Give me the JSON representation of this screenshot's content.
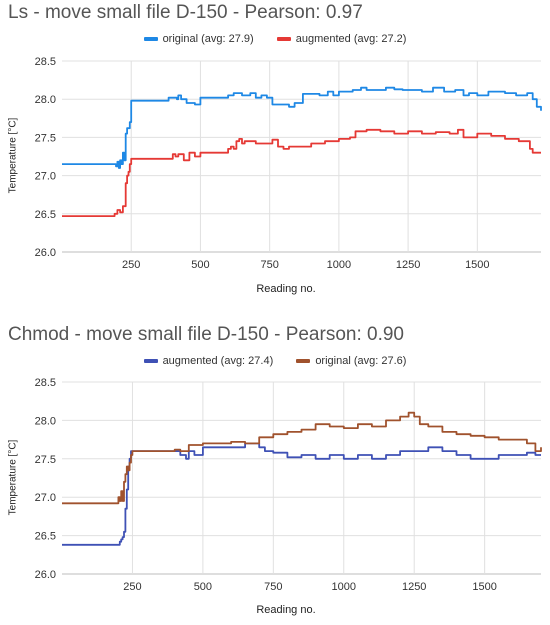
{
  "chart_data": [
    {
      "type": "line",
      "title": "Ls - move small file D-150 - Pearson: 0.97",
      "xlabel": "Reading no.",
      "ylabel": "Temperature [°C]",
      "xlim": [
        0,
        1730
      ],
      "ylim": [
        26.0,
        28.5
      ],
      "xticks": [
        "250",
        "500",
        "750",
        "1000",
        "1250",
        "1500"
      ],
      "yticks": [
        "26.0",
        "26.5",
        "27.0",
        "27.5",
        "28.0",
        "28.5"
      ],
      "grid": true,
      "legend_position": "top-center",
      "series": [
        {
          "name": "original (avg: 27.9)",
          "color": "#1e88e5",
          "x": [
            0,
            190,
            195,
            200,
            205,
            210,
            215,
            220,
            225,
            230,
            235,
            240,
            245,
            250,
            300,
            380,
            385,
            400,
            415,
            420,
            430,
            450,
            480,
            500,
            560,
            600,
            620,
            650,
            680,
            700,
            720,
            740,
            760,
            800,
            820,
            840,
            870,
            900,
            930,
            960,
            980,
            1000,
            1020,
            1050,
            1080,
            1100,
            1130,
            1170,
            1200,
            1230,
            1260,
            1300,
            1340,
            1380,
            1420,
            1450,
            1470,
            1500,
            1540,
            1600,
            1640,
            1680,
            1700,
            1715,
            1730
          ],
          "y": [
            27.15,
            27.15,
            27.12,
            27.18,
            27.1,
            27.2,
            27.15,
            27.3,
            27.2,
            27.55,
            27.62,
            27.62,
            27.7,
            27.98,
            27.98,
            27.98,
            28.02,
            28.02,
            28.0,
            28.05,
            28.0,
            27.95,
            27.93,
            28.02,
            28.02,
            28.05,
            28.08,
            28.05,
            28.08,
            28.02,
            28.05,
            28.02,
            27.93,
            27.93,
            27.9,
            27.95,
            28.07,
            28.07,
            28.05,
            28.1,
            28.05,
            28.1,
            28.1,
            28.12,
            28.15,
            28.12,
            28.12,
            28.15,
            28.13,
            28.12,
            28.12,
            28.1,
            28.15,
            28.1,
            28.12,
            28.05,
            28.08,
            28.05,
            28.1,
            28.08,
            28.05,
            28.08,
            28.0,
            27.9,
            27.85
          ]
        },
        {
          "name": "augmented (avg: 27.2)",
          "color": "#e53935",
          "x": [
            0,
            180,
            190,
            200,
            210,
            220,
            230,
            235,
            240,
            245,
            250,
            300,
            390,
            400,
            410,
            420,
            440,
            460,
            480,
            500,
            560,
            600,
            610,
            620,
            630,
            640,
            650,
            660,
            700,
            740,
            760,
            780,
            800,
            820,
            850,
            900,
            950,
            1000,
            1040,
            1060,
            1100,
            1150,
            1200,
            1250,
            1300,
            1350,
            1400,
            1430,
            1450,
            1500,
            1550,
            1600,
            1650,
            1690,
            1700,
            1730
          ],
          "y": [
            26.47,
            26.47,
            26.5,
            26.55,
            26.52,
            26.6,
            26.9,
            27.0,
            27.05,
            27.15,
            27.22,
            27.22,
            27.22,
            27.28,
            27.25,
            27.28,
            27.2,
            27.3,
            27.25,
            27.3,
            27.3,
            27.35,
            27.38,
            27.35,
            27.45,
            27.48,
            27.42,
            27.45,
            27.42,
            27.42,
            27.47,
            27.38,
            27.35,
            27.38,
            27.38,
            27.42,
            27.45,
            27.48,
            27.5,
            27.58,
            27.6,
            27.58,
            27.55,
            27.58,
            27.55,
            27.57,
            27.55,
            27.6,
            27.5,
            27.55,
            27.52,
            27.48,
            27.45,
            27.35,
            27.3,
            27.3
          ]
        }
      ]
    },
    {
      "type": "line",
      "title": "Chmod - move small file D-150 - Pearson: 0.90",
      "xlabel": "Reading no.",
      "ylabel": "Temperature [°C]",
      "xlim": [
        0,
        1700
      ],
      "ylim": [
        26.0,
        28.5
      ],
      "xticks": [
        "250",
        "500",
        "750",
        "1000",
        "1250",
        "1500"
      ],
      "yticks": [
        "26.0",
        "26.5",
        "27.0",
        "27.5",
        "28.0",
        "28.5"
      ],
      "grid": true,
      "legend_position": "top-center",
      "series": [
        {
          "name": "augmented (avg: 27.4)",
          "color": "#3f51b5",
          "x": [
            0,
            200,
            205,
            210,
            215,
            220,
            225,
            230,
            235,
            240,
            245,
            250,
            300,
            400,
            420,
            440,
            450,
            470,
            500,
            550,
            600,
            650,
            700,
            720,
            750,
            800,
            850,
            900,
            950,
            1000,
            1050,
            1100,
            1150,
            1200,
            1250,
            1300,
            1350,
            1400,
            1450,
            1500,
            1550,
            1600,
            1650,
            1680,
            1700
          ],
          "y": [
            26.38,
            26.38,
            26.42,
            26.45,
            26.48,
            26.55,
            26.85,
            27.1,
            27.4,
            27.5,
            27.6,
            27.6,
            27.6,
            27.6,
            27.55,
            27.5,
            27.6,
            27.55,
            27.65,
            27.65,
            27.65,
            27.7,
            27.65,
            27.6,
            27.58,
            27.52,
            27.55,
            27.5,
            27.55,
            27.5,
            27.55,
            27.5,
            27.55,
            27.6,
            27.6,
            27.65,
            27.6,
            27.55,
            27.5,
            27.5,
            27.55,
            27.55,
            27.58,
            27.55,
            27.55
          ]
        },
        {
          "name": "original (avg: 27.6)",
          "color": "#a0522d",
          "x": [
            0,
            190,
            200,
            205,
            210,
            215,
            220,
            225,
            230,
            235,
            240,
            245,
            250,
            300,
            400,
            420,
            450,
            500,
            550,
            600,
            650,
            700,
            750,
            800,
            850,
            900,
            950,
            1000,
            1050,
            1100,
            1150,
            1200,
            1230,
            1250,
            1270,
            1300,
            1350,
            1400,
            1450,
            1500,
            1550,
            1600,
            1650,
            1680,
            1700
          ],
          "y": [
            26.92,
            26.92,
            27.0,
            26.95,
            27.08,
            26.95,
            27.2,
            27.3,
            27.4,
            27.35,
            27.45,
            27.55,
            27.6,
            27.6,
            27.62,
            27.6,
            27.68,
            27.7,
            27.7,
            27.72,
            27.7,
            27.78,
            27.82,
            27.85,
            27.88,
            27.95,
            27.92,
            27.9,
            27.95,
            27.92,
            28.0,
            28.05,
            28.1,
            28.05,
            27.95,
            27.92,
            27.85,
            27.82,
            27.8,
            27.78,
            27.75,
            27.75,
            27.7,
            27.6,
            27.65
          ]
        }
      ]
    }
  ]
}
